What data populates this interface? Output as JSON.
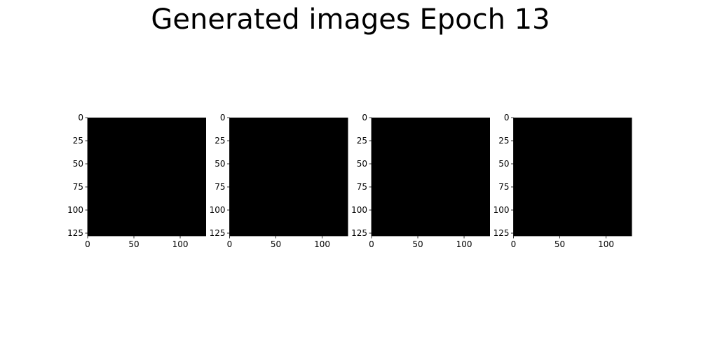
{
  "chart_data": {
    "type": "heatmap",
    "title": "Generated images Epoch 13",
    "panels": [
      {
        "image_color": "#000000",
        "xlim": [
          0,
          128
        ],
        "ylim": [
          128,
          0
        ],
        "xticks": [
          "0",
          "50",
          "100"
        ],
        "yticks": [
          "0",
          "25",
          "50",
          "75",
          "100",
          "125"
        ]
      },
      {
        "image_color": "#000000",
        "xlim": [
          0,
          128
        ],
        "ylim": [
          128,
          0
        ],
        "xticks": [
          "0",
          "50",
          "100"
        ],
        "yticks": [
          "0",
          "25",
          "50",
          "75",
          "100",
          "125"
        ]
      },
      {
        "image_color": "#000000",
        "xlim": [
          0,
          128
        ],
        "ylim": [
          128,
          0
        ],
        "xticks": [
          "0",
          "50",
          "100"
        ],
        "yticks": [
          "0",
          "25",
          "50",
          "75",
          "100",
          "125"
        ]
      },
      {
        "image_color": "#000000",
        "xlim": [
          0,
          128
        ],
        "ylim": [
          128,
          0
        ],
        "xticks": [
          "0",
          "50",
          "100"
        ],
        "yticks": [
          "0",
          "25",
          "50",
          "75",
          "100",
          "125"
        ]
      }
    ]
  }
}
